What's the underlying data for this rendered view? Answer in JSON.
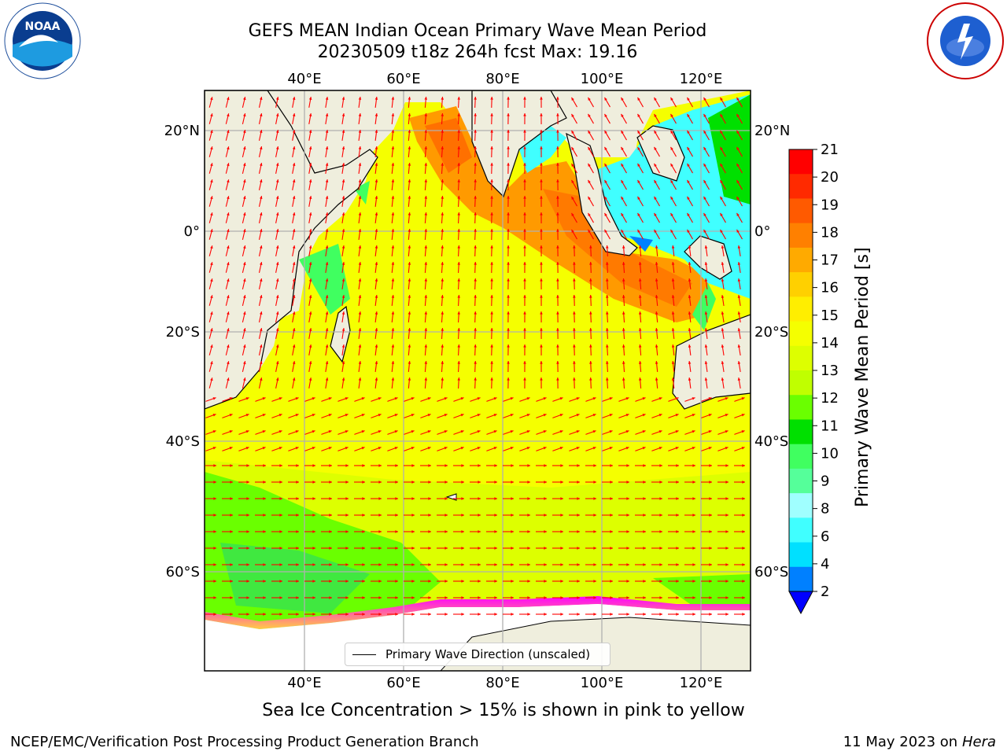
{
  "header": {
    "title_line1": "GEFS MEAN Indian Ocean Primary Wave Mean Period",
    "title_line2": "20230509 t18z 264h fcst   Max: 19.16"
  },
  "logos": {
    "left": "NOAA",
    "right": "NATIONAL WEATHER SERVICE"
  },
  "map": {
    "lon_ticks_top": [
      "40°E",
      "60°E",
      "80°E",
      "100°E",
      "120°E"
    ],
    "lon_ticks_bottom": [
      "40°E",
      "60°E",
      "80°E",
      "100°E",
      "120°E"
    ],
    "lat_ticks_left": [
      "20°N",
      "0°",
      "20°S",
      "40°S",
      "60°S"
    ],
    "lat_ticks_right": [
      "20°N",
      "0°",
      "20°S",
      "40°S",
      "60°S"
    ],
    "legend_label": "Primary Wave Direction (unscaled)",
    "colors": {
      "land": "#efeedd",
      "sea_ice": "#ffffff",
      "vector": "#ff0000"
    }
  },
  "colorbar": {
    "label": "Primary Wave Mean Period [s]",
    "ticks": [
      "21",
      "20",
      "19",
      "18",
      "17",
      "16",
      "15",
      "14",
      "13",
      "12",
      "11",
      "10",
      "9",
      "8",
      "6",
      "4",
      "2"
    ],
    "colors": [
      "#ff0000",
      "#ff2a00",
      "#ff5a00",
      "#ff8000",
      "#ffaa00",
      "#ffd000",
      "#ffee00",
      "#f5ff00",
      "#ddff00",
      "#c0ff00",
      "#6aff00",
      "#00e000",
      "#40ff60",
      "#55ff9a",
      "#a0ffff",
      "#40ffff",
      "#00e0ff",
      "#0080ff"
    ],
    "extend_color": "#0000ff"
  },
  "caption": "Sea Ice Concentration > 15% is shown in pink to yellow",
  "footer": {
    "credit": "NCEP/EMC/Verification Post Processing Product Generation Branch",
    "date": "11 May 2023 on",
    "machine": "Hera"
  }
}
